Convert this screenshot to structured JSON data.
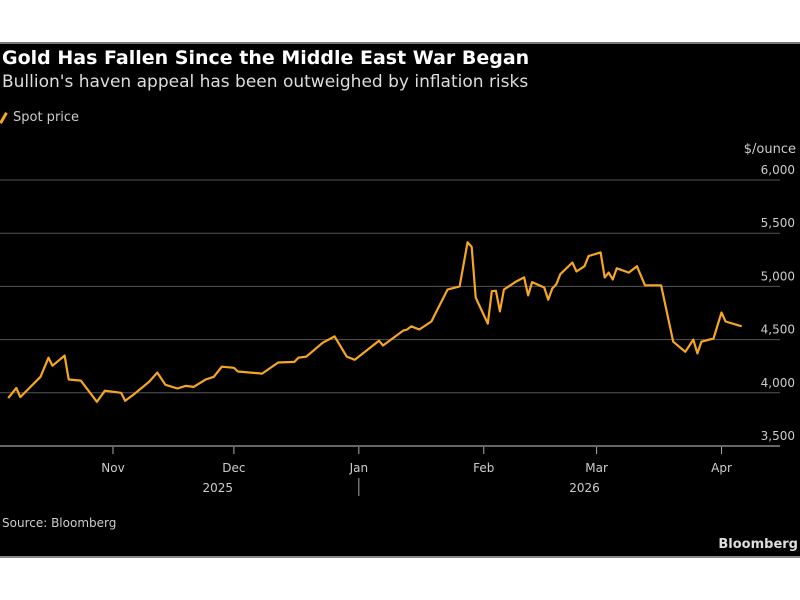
{
  "title": "Gold Has Fallen Since the Middle East War Began",
  "subtitle": "Bullion's haven appeal has been outweighed by inflation risks",
  "source": "Source: Bloomberg",
  "brand": "Bloomberg",
  "chart_data": {
    "type": "line",
    "title": "Gold Has Fallen Since the Middle East War Began",
    "subtitle": "Bullion's haven appeal has been outweighed by inflation risks",
    "ylabel": "$/ounce",
    "ylim": [
      3500,
      6000
    ],
    "yticks": [
      3500,
      4000,
      4500,
      5000,
      5500,
      6000
    ],
    "ytick_labels": [
      "3,500",
      "4,000",
      "4,500",
      "5,000",
      "5,500",
      "6,000"
    ],
    "y_axis_side": "right",
    "grid": true,
    "legend_placement": "top-left",
    "xticks": [
      {
        "date": "2025-11-01",
        "label": "Nov"
      },
      {
        "date": "2025-12-01",
        "label": "Dec"
      },
      {
        "date": "2026-01-01",
        "label": "Jan"
      },
      {
        "date": "2026-02-01",
        "label": "Feb"
      },
      {
        "date": "2026-03-01",
        "label": "Mar"
      },
      {
        "date": "2026-04-01",
        "label": "Apr"
      }
    ],
    "year_labels": [
      {
        "date": "2025-11-27",
        "label": "2025"
      },
      {
        "date": "2026-02-26",
        "label": "2026"
      }
    ],
    "series": [
      {
        "name": "Spot price",
        "color": "#f5a623",
        "x": [
          "2025-10-06",
          "2025-10-08",
          "2025-10-09",
          "2025-10-14",
          "2025-10-16",
          "2025-10-17",
          "2025-10-20",
          "2025-10-21",
          "2025-10-24",
          "2025-10-28",
          "2025-10-30",
          "2025-11-03",
          "2025-11-04",
          "2025-11-06",
          "2025-11-10",
          "2025-11-12",
          "2025-11-14",
          "2025-11-17",
          "2025-11-19",
          "2025-11-21",
          "2025-11-24",
          "2025-11-26",
          "2025-11-28",
          "2025-12-01",
          "2025-12-02",
          "2025-12-08",
          "2025-12-12",
          "2025-12-16",
          "2025-12-17",
          "2025-12-19",
          "2025-12-23",
          "2025-12-26",
          "2025-12-29",
          "2025-12-31",
          "2026-01-06",
          "2026-01-07",
          "2026-01-12",
          "2026-01-13",
          "2026-01-14",
          "2026-01-16",
          "2026-01-19",
          "2026-01-23",
          "2026-01-26",
          "2026-01-28",
          "2026-01-29",
          "2026-01-30",
          "2026-02-02",
          "2026-02-03",
          "2026-02-04",
          "2026-02-05",
          "2026-02-06",
          "2026-02-09",
          "2026-02-11",
          "2026-02-12",
          "2026-02-13",
          "2026-02-16",
          "2026-02-17",
          "2026-02-18",
          "2026-02-19",
          "2026-02-20",
          "2026-02-23",
          "2026-02-24",
          "2026-02-26",
          "2026-02-27",
          "2026-03-02",
          "2026-03-03",
          "2026-03-04",
          "2026-03-05",
          "2026-03-06",
          "2026-03-09",
          "2026-03-11",
          "2026-03-13",
          "2026-03-17",
          "2026-03-20",
          "2026-03-23",
          "2026-03-25",
          "2026-03-26",
          "2026-03-27",
          "2026-03-30",
          "2026-04-01",
          "2026-04-02",
          "2026-04-06"
        ],
        "values": [
          3950,
          4045,
          3960,
          4150,
          4330,
          4255,
          4350,
          4125,
          4115,
          3915,
          4020,
          4000,
          3925,
          3980,
          4105,
          4190,
          4075,
          4040,
          4065,
          4055,
          4125,
          4150,
          4245,
          4235,
          4200,
          4180,
          4285,
          4290,
          4330,
          4340,
          4470,
          4530,
          4340,
          4310,
          4490,
          4445,
          4585,
          4595,
          4625,
          4595,
          4670,
          4970,
          5000,
          5415,
          5370,
          4895,
          4650,
          4955,
          4960,
          4765,
          4970,
          5045,
          5085,
          4915,
          5040,
          4990,
          4875,
          4980,
          5020,
          5115,
          5225,
          5140,
          5190,
          5285,
          5320,
          5085,
          5130,
          5065,
          5170,
          5130,
          5190,
          5010,
          5010,
          4480,
          4385,
          4500,
          4370,
          4480,
          4510,
          4755,
          4670,
          4625
        ]
      }
    ]
  }
}
